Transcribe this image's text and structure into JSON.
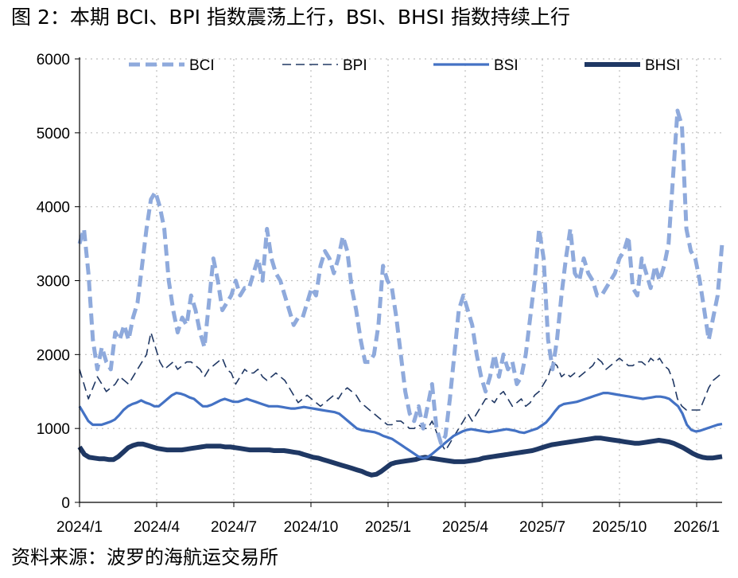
{
  "title": "图 2：本期 BCI、BPI 指数震荡上行，BSI、BHSI 指数持续上行",
  "source": "资料来源：波罗的海航运交易所",
  "chart_data": {
    "type": "line",
    "x_tick_labels": [
      "2024/1",
      "2024/4",
      "2024/7",
      "2024/10",
      "2025/1",
      "2025/4",
      "2025/7",
      "2025/10",
      "2026/1"
    ],
    "ylim": [
      0,
      6000
    ],
    "y_ticks": [
      0,
      1000,
      2000,
      3000,
      4000,
      5000,
      6000
    ],
    "grid": "dotted horizontal and vertical",
    "legend_position": "top",
    "colors": {
      "BCI": "#8faadc",
      "BPI": "#203864",
      "BSI": "#4472c4",
      "BHSI": "#1f3864"
    },
    "series": [
      {
        "name": "BCI",
        "style": "dashed-thick",
        "values": [
          3500,
          3700,
          3100,
          2200,
          1800,
          2100,
          1900,
          1800,
          2300,
          2200,
          2400,
          2200,
          2500,
          2700,
          3200,
          3700,
          4100,
          4200,
          4000,
          3700,
          3000,
          2600,
          2300,
          2500,
          2400,
          2800,
          2600,
          2300,
          2100,
          2700,
          3300,
          3000,
          2600,
          2700,
          2800,
          3000,
          2800,
          2900,
          2900,
          3100,
          3300,
          3000,
          3700,
          3300,
          3100,
          3000,
          2800,
          2600,
          2400,
          2500,
          2500,
          2700,
          2900,
          2800,
          3200,
          3400,
          3300,
          3100,
          3300,
          3600,
          3400,
          2900,
          2600,
          2200,
          1900,
          1900,
          2000,
          2400,
          3200,
          3000,
          2900,
          2500,
          2000,
          1500,
          1200,
          1100,
          1300,
          1000,
          1300,
          1600,
          1000,
          800,
          900,
          1400,
          2000,
          2600,
          2800,
          2600,
          2400,
          2000,
          1700,
          1500,
          1700,
          2000,
          1700,
          2000,
          1800,
          1900,
          1600,
          1700,
          2000,
          2500,
          3000,
          3700,
          3300,
          2200,
          1800,
          2200,
          2800,
          3300,
          3700,
          3100,
          3000,
          3300,
          3100,
          3000,
          2800,
          2800,
          2900,
          3000,
          3100,
          3300,
          3400,
          3600,
          2900,
          2800,
          3300,
          3100,
          2900,
          3200,
          3000,
          3200,
          3500,
          4400,
          5300,
          5100,
          3700,
          3400,
          3300,
          3000,
          2600,
          2200,
          2500,
          2800,
          3500
        ]
      },
      {
        "name": "BPI",
        "style": "dashed-thin",
        "values": [
          1800,
          1600,
          1400,
          1550,
          1700,
          1600,
          1500,
          1550,
          1600,
          1700,
          1650,
          1600,
          1700,
          1800,
          1900,
          2000,
          2300,
          2100,
          1900,
          1800,
          1850,
          1900,
          1800,
          1850,
          1900,
          1900,
          1850,
          1800,
          1700,
          1800,
          1850,
          1900,
          1950,
          1800,
          1750,
          1600,
          1700,
          1800,
          1750,
          1750,
          1800,
          1700,
          1650,
          1700,
          1750,
          1700,
          1650,
          1550,
          1450,
          1350,
          1400,
          1450,
          1400,
          1350,
          1300,
          1350,
          1400,
          1450,
          1400,
          1500,
          1550,
          1500,
          1450,
          1350,
          1300,
          1250,
          1200,
          1150,
          1100,
          1050,
          1050,
          1100,
          1100,
          1050,
          1000,
          1000,
          1050,
          1000,
          1000,
          1100,
          950,
          800,
          700,
          800,
          900,
          1000,
          1100,
          1200,
          1100,
          1200,
          1300,
          1400,
          1400,
          1350,
          1450,
          1500,
          1400,
          1300,
          1350,
          1400,
          1300,
          1350,
          1450,
          1500,
          1600,
          1700,
          1900,
          1850,
          1700,
          1750,
          1700,
          1750,
          1700,
          1750,
          1800,
          1850,
          1950,
          1900,
          1800,
          1850,
          1900,
          1950,
          1900,
          1850,
          1850,
          1900,
          1900,
          1850,
          1950,
          1900,
          1950,
          1850,
          1800,
          1650,
          1400,
          1300,
          1250,
          1250,
          1250,
          1250,
          1400,
          1550,
          1650,
          1700,
          1750
        ]
      },
      {
        "name": "BSI",
        "style": "solid-medium",
        "values": [
          1300,
          1200,
          1100,
          1050,
          1050,
          1050,
          1070,
          1090,
          1120,
          1180,
          1250,
          1300,
          1330,
          1350,
          1380,
          1350,
          1330,
          1300,
          1300,
          1350,
          1400,
          1450,
          1480,
          1470,
          1450,
          1420,
          1400,
          1350,
          1300,
          1300,
          1320,
          1350,
          1380,
          1400,
          1380,
          1360,
          1360,
          1380,
          1400,
          1380,
          1360,
          1340,
          1320,
          1300,
          1300,
          1300,
          1290,
          1280,
          1270,
          1270,
          1280,
          1290,
          1280,
          1270,
          1260,
          1250,
          1240,
          1230,
          1220,
          1200,
          1150,
          1100,
          1050,
          1000,
          980,
          970,
          960,
          950,
          930,
          900,
          880,
          860,
          820,
          780,
          740,
          700,
          660,
          620,
          600,
          610,
          650,
          700,
          750,
          800,
          850,
          900,
          930,
          960,
          980,
          990,
          980,
          970,
          960,
          950,
          960,
          970,
          980,
          990,
          980,
          970,
          950,
          940,
          960,
          980,
          1000,
          1040,
          1080,
          1150,
          1230,
          1300,
          1330,
          1340,
          1350,
          1360,
          1380,
          1400,
          1420,
          1440,
          1460,
          1480,
          1480,
          1470,
          1460,
          1450,
          1440,
          1430,
          1420,
          1410,
          1400,
          1410,
          1420,
          1430,
          1430,
          1420,
          1400,
          1350,
          1300,
          1200,
          1050,
          980,
          960,
          970,
          990,
          1010,
          1030,
          1050,
          1060
        ]
      },
      {
        "name": "BHSI",
        "style": "solid-thick",
        "values": [
          750,
          650,
          610,
          600,
          590,
          590,
          580,
          580,
          620,
          680,
          740,
          770,
          790,
          790,
          770,
          750,
          730,
          720,
          710,
          710,
          710,
          710,
          720,
          730,
          740,
          750,
          760,
          760,
          760,
          760,
          750,
          750,
          740,
          730,
          720,
          710,
          710,
          710,
          710,
          710,
          700,
          700,
          700,
          690,
          680,
          670,
          650,
          630,
          610,
          600,
          580,
          560,
          540,
          520,
          500,
          480,
          460,
          440,
          420,
          390,
          370,
          380,
          420,
          470,
          520,
          540,
          550,
          560,
          570,
          580,
          600,
          610,
          600,
          590,
          580,
          570,
          560,
          550,
          550,
          550,
          560,
          570,
          580,
          600,
          610,
          620,
          630,
          640,
          650,
          660,
          670,
          680,
          690,
          700,
          720,
          740,
          760,
          780,
          790,
          800,
          810,
          820,
          830,
          840,
          850,
          860,
          870,
          870,
          860,
          850,
          840,
          830,
          820,
          810,
          800,
          800,
          810,
          820,
          830,
          840,
          830,
          820,
          800,
          770,
          740,
          700,
          660,
          630,
          610,
          600,
          600,
          610,
          620
        ]
      }
    ]
  }
}
